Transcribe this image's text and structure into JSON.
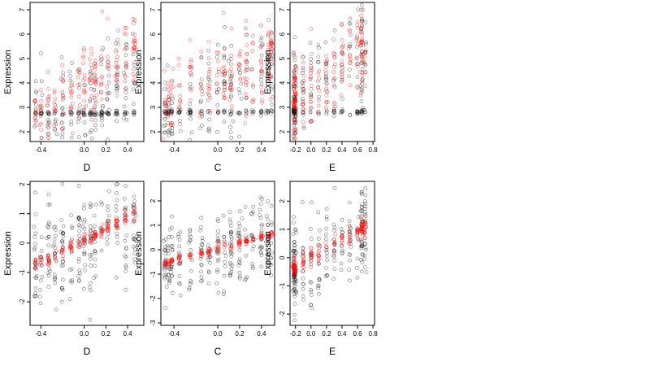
{
  "chart_data": [
    {
      "type": "scatter",
      "xlabel": "D",
      "ylabel": "Expression",
      "xlim": [
        -0.5,
        0.55
      ],
      "ylim": [
        1.6,
        7.3
      ],
      "xticks": [
        "-0.4",
        "0.0",
        "0.2",
        "0.4"
      ],
      "xtick_values": [
        -0.4,
        0.0,
        0.2,
        0.4
      ],
      "yticks": [
        "2",
        "3",
        "4",
        "5",
        "6",
        "7"
      ],
      "ytick_values": [
        2,
        3,
        4,
        5,
        6,
        7
      ],
      "x_clusters": [
        -0.45,
        -0.4,
        -0.33,
        -0.27,
        -0.2,
        -0.12,
        -0.05,
        0.0,
        0.06,
        0.1,
        0.16,
        0.22,
        0.3,
        0.38,
        0.46
      ],
      "series": [
        {
          "color": "#000000",
          "floor": 2.75,
          "floor_share": 0.35,
          "baseline": 3.2,
          "slope": 2.6,
          "spread": 1.1,
          "n": 260
        },
        {
          "color": "#ff0000",
          "floor": null,
          "floor_share": 0,
          "baseline": 3.9,
          "slope": 3.4,
          "spread": 0.8,
          "n": 200
        }
      ]
    },
    {
      "type": "scatter",
      "xlabel": "C",
      "ylabel": "Expression",
      "xlim": [
        -0.52,
        0.52
      ],
      "ylim": [
        1.6,
        7.3
      ],
      "xticks": [
        "-0.4",
        "0.0",
        "0.2",
        "0.4"
      ],
      "xtick_values": [
        -0.4,
        0.0,
        0.2,
        0.4
      ],
      "yticks": [
        "2",
        "3",
        "4",
        "5",
        "6",
        "7"
      ],
      "ytick_values": [
        2,
        3,
        4,
        5,
        6,
        7
      ],
      "x_clusters": [
        -0.48,
        -0.45,
        -0.42,
        -0.35,
        -0.25,
        -0.15,
        -0.08,
        0.0,
        0.06,
        0.12,
        0.2,
        0.26,
        0.32,
        0.4,
        0.46,
        0.49
      ],
      "series": [
        {
          "color": "#000000",
          "floor": 2.8,
          "floor_share": 0.3,
          "baseline": 3.8,
          "slope": 2.2,
          "spread": 1.1,
          "n": 260
        },
        {
          "color": "#ff0000",
          "floor": null,
          "floor_share": 0,
          "baseline": 4.1,
          "slope": 2.0,
          "spread": 0.8,
          "n": 200
        }
      ]
    },
    {
      "type": "scatter",
      "xlabel": "E",
      "ylabel": "Expression",
      "xlim": [
        -0.27,
        0.82
      ],
      "ylim": [
        1.6,
        7.3
      ],
      "xticks": [
        "-0.2",
        "0.0",
        "0.2",
        "0.4",
        "0.6",
        "0.8"
      ],
      "xtick_values": [
        -0.2,
        0.0,
        0.2,
        0.4,
        0.6,
        0.8
      ],
      "yticks": [
        "2",
        "3",
        "4",
        "5",
        "6",
        "7"
      ],
      "ytick_values": [
        2,
        3,
        4,
        5,
        6,
        7
      ],
      "x_clusters": [
        -0.22,
        -0.22,
        -0.21,
        -0.2,
        -0.1,
        0.0,
        0.1,
        0.2,
        0.3,
        0.4,
        0.5,
        0.6,
        0.65,
        0.66,
        0.7
      ],
      "series": [
        {
          "color": "#000000",
          "floor": 2.8,
          "floor_share": 0.25,
          "baseline": 3.8,
          "slope": 2.6,
          "spread": 1.0,
          "n": 240
        },
        {
          "color": "#ff0000",
          "floor": null,
          "floor_share": 0,
          "baseline": 3.9,
          "slope": 2.4,
          "spread": 0.9,
          "n": 200
        }
      ]
    },
    {
      "type": "scatter",
      "xlabel": "D",
      "ylabel": "Expression",
      "xlim": [
        -0.5,
        0.55
      ],
      "ylim": [
        -2.8,
        2.1
      ],
      "xticks": [
        "-0.4",
        "0.0",
        "0.2",
        "0.4"
      ],
      "xtick_values": [
        -0.4,
        0.0,
        0.2,
        0.4
      ],
      "yticks": [
        "-2",
        "-1",
        "0",
        "1",
        "2"
      ],
      "ytick_values": [
        -2,
        -1,
        0,
        1,
        2
      ],
      "x_clusters": [
        -0.45,
        -0.4,
        -0.33,
        -0.27,
        -0.2,
        -0.12,
        -0.05,
        0.0,
        0.06,
        0.1,
        0.16,
        0.22,
        0.3,
        0.38,
        0.46
      ],
      "series": [
        {
          "color": "#000000",
          "floor": null,
          "floor_share": 0,
          "baseline": 0.0,
          "slope": 1.8,
          "spread": 0.9,
          "n": 260
        },
        {
          "color": "#ff0000",
          "floor": null,
          "floor_share": 0,
          "baseline": 0.1,
          "slope": 1.9,
          "spread": 0.12,
          "n": 150
        }
      ]
    },
    {
      "type": "scatter",
      "xlabel": "C",
      "ylabel": "Expression",
      "xlim": [
        -0.52,
        0.52
      ],
      "ylim": [
        -3.1,
        2.8
      ],
      "xticks": [
        "-0.4",
        "0.0",
        "0.2",
        "0.4"
      ],
      "xtick_values": [
        -0.4,
        0.0,
        0.2,
        0.4
      ],
      "yticks": [
        "-3",
        "-2",
        "-1",
        "0",
        "1",
        "2"
      ],
      "ytick_values": [
        -3,
        -2,
        -1,
        0,
        1,
        2
      ],
      "x_clusters": [
        -0.48,
        -0.45,
        -0.42,
        -0.35,
        -0.25,
        -0.15,
        -0.08,
        0.0,
        0.06,
        0.12,
        0.2,
        0.26,
        0.32,
        0.4,
        0.46,
        0.49
      ],
      "series": [
        {
          "color": "#000000",
          "floor": null,
          "floor_share": 0,
          "baseline": 0.0,
          "slope": 1.2,
          "spread": 0.8,
          "n": 260
        },
        {
          "color": "#ff0000",
          "floor": null,
          "floor_share": 0,
          "baseline": 0.05,
          "slope": 1.2,
          "spread": 0.08,
          "n": 150
        }
      ]
    },
    {
      "type": "scatter",
      "xlabel": "E",
      "ylabel": "Expression",
      "xlim": [
        -0.27,
        0.82
      ],
      "ylim": [
        -2.4,
        2.7
      ],
      "xticks": [
        "-0.2",
        "0.0",
        "0.2",
        "0.4",
        "0.6",
        "0.8"
      ],
      "xtick_values": [
        -0.2,
        0.0,
        0.2,
        0.4,
        0.6,
        0.8
      ],
      "yticks": [
        "-2",
        "-1",
        "0",
        "1",
        "2"
      ],
      "ytick_values": [
        -2,
        -1,
        0,
        1,
        2
      ],
      "x_clusters": [
        -0.22,
        -0.22,
        -0.21,
        -0.2,
        -0.1,
        0.0,
        0.1,
        0.2,
        0.3,
        0.4,
        0.5,
        0.6,
        0.65,
        0.66,
        0.7
      ],
      "series": [
        {
          "color": "#000000",
          "floor": null,
          "floor_share": 0,
          "baseline": -0.1,
          "slope": 1.6,
          "spread": 0.75,
          "n": 240
        },
        {
          "color": "#ff0000",
          "floor": null,
          "floor_share": 0,
          "baseline": 0.0,
          "slope": 1.6,
          "spread": 0.15,
          "n": 150
        }
      ]
    }
  ]
}
